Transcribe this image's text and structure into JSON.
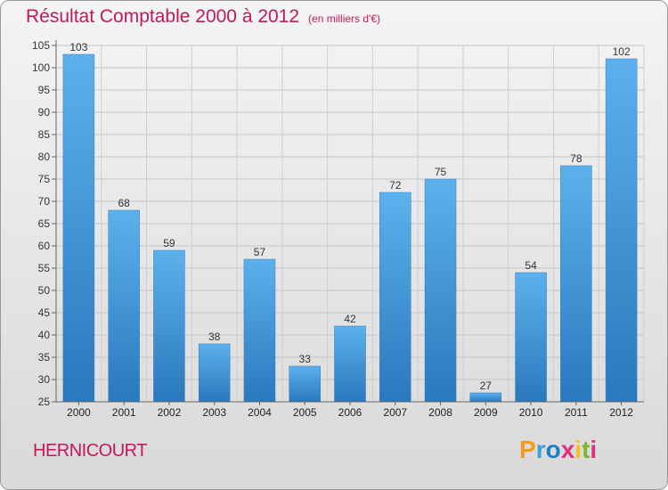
{
  "chart_data": {
    "type": "bar",
    "title": "Résultat Comptable 2000 à 2012",
    "subtitle": "(en milliers d'€)",
    "categories": [
      "2000",
      "2001",
      "2002",
      "2003",
      "2004",
      "2005",
      "2006",
      "2007",
      "2008",
      "2009",
      "2010",
      "2011",
      "2012"
    ],
    "values": [
      103,
      68,
      59,
      38,
      57,
      33,
      42,
      72,
      75,
      27,
      54,
      78,
      102
    ],
    "ylim": [
      25,
      105
    ],
    "yticks": [
      25,
      30,
      35,
      40,
      45,
      50,
      55,
      60,
      65,
      70,
      75,
      80,
      85,
      90,
      95,
      100,
      105
    ],
    "xlabel": "",
    "ylabel": "",
    "grid": true,
    "bar_color": "#3a8fd4"
  },
  "commune": "HERNICOURT",
  "logo": {
    "letters": [
      "P",
      "r",
      "o",
      "x",
      "i",
      "t",
      "i"
    ],
    "colors": [
      "#f29a1e",
      "#3aa0d9",
      "#1f7fc4",
      "#e0307b",
      "#f3c21a",
      "#7cb82f",
      "#e0307b"
    ]
  }
}
